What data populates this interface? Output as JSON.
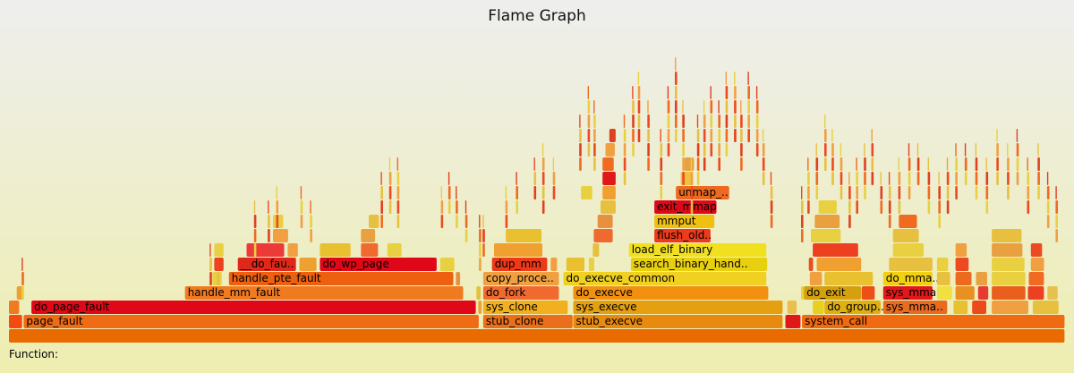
{
  "title": "Flame Graph",
  "details_label": "Function:",
  "chart_data": {
    "type": "flame",
    "title": "Flame Graph",
    "frames": [
      {
        "label": "",
        "level": 0,
        "start": 0,
        "width": 1,
        "color": "#e86a00"
      },
      {
        "label": "",
        "level": 1,
        "start": 0.0,
        "width": 0.013,
        "color": "#f24a10"
      },
      {
        "label": "page_fault",
        "level": 1,
        "start": 0.0139,
        "width": 0.4314,
        "color": "#ef6b14"
      },
      {
        "label": "stub_clone",
        "level": 1,
        "start": 0.4491,
        "width": 0.0852,
        "color": "#ea6f1c"
      },
      {
        "label": "stub_execve",
        "level": 1,
        "start": 0.5343,
        "width": 0.1987,
        "color": "#e88a10"
      },
      {
        "label": "",
        "level": 1,
        "start": 0.7352,
        "width": 0.0148,
        "color": "#e01818"
      },
      {
        "label": "system_call",
        "level": 1,
        "start": 0.7509,
        "width": 0.2491,
        "color": "#ef6a10"
      },
      {
        "label": "",
        "level": 2,
        "start": 0.0,
        "width": 0.0102,
        "color": "#f07a20"
      },
      {
        "label": "do_page_fault",
        "level": 2,
        "start": 0.0213,
        "width": 0.4213,
        "color": "#e00818"
      },
      {
        "label": "",
        "level": 2,
        "start": 0.4444,
        "width": 0.0037,
        "color": "#f0a030"
      },
      {
        "label": "sys_clone",
        "level": 2,
        "start": 0.4491,
        "width": 0.0806,
        "color": "#f2b020"
      },
      {
        "label": "sys_execve",
        "level": 2,
        "start": 0.5343,
        "width": 0.1987,
        "color": "#e4a010"
      },
      {
        "label": "",
        "level": 2,
        "start": 0.737,
        "width": 0.0093,
        "color": "#e9c050"
      },
      {
        "label": "",
        "level": 2,
        "start": 0.7611,
        "width": 0.0111,
        "color": "#e8d020"
      },
      {
        "label": "do_group..",
        "level": 2,
        "start": 0.7722,
        "width": 0.0537,
        "color": "#e0b010"
      },
      {
        "label": "sys_mma..",
        "level": 2,
        "start": 0.8278,
        "width": 0.0611,
        "color": "#ea6a20"
      },
      {
        "label": "",
        "level": 2,
        "start": 0.8944,
        "width": 0.0139,
        "color": "#e8c030"
      },
      {
        "label": "",
        "level": 2,
        "start": 0.912,
        "width": 0.0139,
        "color": "#ec4a18"
      },
      {
        "label": "",
        "level": 2,
        "start": 0.9306,
        "width": 0.0352,
        "color": "#f0a040"
      },
      {
        "label": "",
        "level": 2,
        "start": 0.9694,
        "width": 0.025,
        "color": "#e8c040"
      },
      {
        "label": "",
        "level": 3,
        "start": 0.0074,
        "width": 0.0065,
        "color": "#f0a030"
      },
      {
        "label": "handle_mm_fault",
        "level": 3,
        "start": 0.1667,
        "width": 0.2639,
        "color": "#f07a20"
      },
      {
        "label": "",
        "level": 3,
        "start": 0.4426,
        "width": 0.0046,
        "color": "#e8c040"
      },
      {
        "label": "do_fork",
        "level": 3,
        "start": 0.4491,
        "width": 0.0722,
        "color": "#f06a30"
      },
      {
        "label": "do_execve",
        "level": 3,
        "start": 0.5343,
        "width": 0.1852,
        "color": "#f29010"
      },
      {
        "label": "",
        "level": 3,
        "start": 0.75,
        "width": 0.0037,
        "color": "#e8d040"
      },
      {
        "label": "do_exit",
        "level": 3,
        "start": 0.7528,
        "width": 0.0546,
        "color": "#d4a010"
      },
      {
        "label": "",
        "level": 3,
        "start": 0.8074,
        "width": 0.013,
        "color": "#ec5018"
      },
      {
        "label": "sys_mma",
        "level": 3,
        "start": 0.8278,
        "width": 0.0472,
        "color": "#e0181a"
      },
      {
        "label": "",
        "level": 3,
        "start": 0.8787,
        "width": 0.0148,
        "color": "#f0e040"
      },
      {
        "label": "",
        "level": 3,
        "start": 0.8963,
        "width": 0.0185,
        "color": "#e89020"
      },
      {
        "label": "",
        "level": 3,
        "start": 0.9176,
        "width": 0.0102,
        "color": "#e83a30"
      },
      {
        "label": "",
        "level": 3,
        "start": 0.9306,
        "width": 0.0324,
        "color": "#e8601c"
      },
      {
        "label": "",
        "level": 3,
        "start": 0.9648,
        "width": 0.0157,
        "color": "#ec4020"
      },
      {
        "label": "",
        "level": 3,
        "start": 0.9833,
        "width": 0.0102,
        "color": "#e8c050"
      },
      {
        "label": "",
        "level": 4,
        "start": 0.1926,
        "width": 0.0093,
        "color": "#e8d040"
      },
      {
        "label": "handle_pte_fault",
        "level": 4,
        "start": 0.2083,
        "width": 0.213,
        "color": "#ec6010"
      },
      {
        "label": "",
        "level": 4,
        "start": 0.4231,
        "width": 0.0046,
        "color": "#e89040"
      },
      {
        "label": "copy_proce..",
        "level": 4,
        "start": 0.4491,
        "width": 0.0722,
        "color": "#f0a040"
      },
      {
        "label": "do_execve_common",
        "level": 4,
        "start": 0.525,
        "width": 0.1926,
        "color": "#f0d020"
      },
      {
        "label": "",
        "level": 4,
        "start": 0.7583,
        "width": 0.012,
        "color": "#f0a040"
      },
      {
        "label": "",
        "level": 4,
        "start": 0.7722,
        "width": 0.0463,
        "color": "#e8c030"
      },
      {
        "label": "do_mma..",
        "level": 4,
        "start": 0.8278,
        "width": 0.0472,
        "color": "#f0d010"
      },
      {
        "label": "",
        "level": 4,
        "start": 0.8787,
        "width": 0.013,
        "color": "#e8c040"
      },
      {
        "label": "",
        "level": 4,
        "start": 0.8963,
        "width": 0.0157,
        "color": "#ec6a20"
      },
      {
        "label": "",
        "level": 4,
        "start": 0.9157,
        "width": 0.0111,
        "color": "#e8a040"
      },
      {
        "label": "",
        "level": 4,
        "start": 0.9306,
        "width": 0.0324,
        "color": "#e8d040"
      },
      {
        "label": "",
        "level": 4,
        "start": 0.9657,
        "width": 0.0148,
        "color": "#f06a20"
      },
      {
        "label": "",
        "level": 5,
        "start": 0.1944,
        "width": 0.0093,
        "color": "#ec4020"
      },
      {
        "label": "__do_fau..",
        "level": 5,
        "start": 0.2167,
        "width": 0.0556,
        "color": "#e0281a"
      },
      {
        "label": "",
        "level": 5,
        "start": 0.275,
        "width": 0.0167,
        "color": "#f0a030"
      },
      {
        "label": "do_wp_page",
        "level": 5,
        "start": 0.2944,
        "width": 0.1111,
        "color": "#e00818"
      },
      {
        "label": "",
        "level": 5,
        "start": 0.4083,
        "width": 0.0139,
        "color": "#e8d040"
      },
      {
        "label": "dup_mm",
        "level": 5,
        "start": 0.4574,
        "width": 0.0528,
        "color": "#ec3a18"
      },
      {
        "label": "",
        "level": 5,
        "start": 0.513,
        "width": 0.0065,
        "color": "#f0a040"
      },
      {
        "label": "",
        "level": 5,
        "start": 0.5278,
        "width": 0.0176,
        "color": "#e8c030"
      },
      {
        "label": "",
        "level": 5,
        "start": 0.5491,
        "width": 0.0056,
        "color": "#e8d040"
      },
      {
        "label": "search_binary_hand..",
        "level": 5,
        "start": 0.5889,
        "width": 0.1296,
        "color": "#e8d010"
      },
      {
        "label": "",
        "level": 5,
        "start": 0.7574,
        "width": 0.0046,
        "color": "#e85020"
      },
      {
        "label": "",
        "level": 5,
        "start": 0.7648,
        "width": 0.0426,
        "color": "#f0a030"
      },
      {
        "label": "",
        "level": 5,
        "start": 0.8333,
        "width": 0.0417,
        "color": "#e8c040"
      },
      {
        "label": "",
        "level": 5,
        "start": 0.8787,
        "width": 0.0111,
        "color": "#e8d040"
      },
      {
        "label": "",
        "level": 5,
        "start": 0.8963,
        "width": 0.013,
        "color": "#ec4a20"
      },
      {
        "label": "",
        "level": 5,
        "start": 0.9306,
        "width": 0.0315,
        "color": "#e8d040"
      },
      {
        "label": "",
        "level": 5,
        "start": 0.9676,
        "width": 0.013,
        "color": "#f0a040"
      },
      {
        "label": "",
        "level": 6,
        "start": 0.1944,
        "width": 0.0093,
        "color": "#e8d040"
      },
      {
        "label": "",
        "level": 6,
        "start": 0.225,
        "width": 0.0361,
        "color": "#ec3a38"
      },
      {
        "label": "",
        "level": 6,
        "start": 0.2639,
        "width": 0.0102,
        "color": "#f0a040"
      },
      {
        "label": "",
        "level": 6,
        "start": 0.2944,
        "width": 0.0296,
        "color": "#e8c030"
      },
      {
        "label": "",
        "level": 6,
        "start": 0.3333,
        "width": 0.0167,
        "color": "#f06a30"
      },
      {
        "label": "",
        "level": 6,
        "start": 0.3583,
        "width": 0.0139,
        "color": "#e8d040"
      },
      {
        "label": "",
        "level": 6,
        "start": 0.4593,
        "width": 0.0463,
        "color": "#f0a030"
      },
      {
        "label": "",
        "level": 6,
        "start": 0.5528,
        "width": 0.0065,
        "color": "#e8c040"
      },
      {
        "label": "load_elf_binary",
        "level": 6,
        "start": 0.587,
        "width": 0.1306,
        "color": "#f0e020"
      },
      {
        "label": "",
        "level": 6,
        "start": 0.7611,
        "width": 0.0435,
        "color": "#ec4020"
      },
      {
        "label": "",
        "level": 6,
        "start": 0.837,
        "width": 0.0296,
        "color": "#e8d040"
      },
      {
        "label": "",
        "level": 6,
        "start": 0.8963,
        "width": 0.0111,
        "color": "#f0a040"
      },
      {
        "label": "",
        "level": 6,
        "start": 0.9306,
        "width": 0.0296,
        "color": "#e8a040"
      },
      {
        "label": "",
        "level": 6,
        "start": 0.9676,
        "width": 0.0111,
        "color": "#ec4a20"
      },
      {
        "label": "",
        "level": 7,
        "start": 0.25,
        "width": 0.0148,
        "color": "#f0a040"
      },
      {
        "label": "",
        "level": 7,
        "start": 0.3333,
        "width": 0.0139,
        "color": "#e8a040"
      },
      {
        "label": "",
        "level": 7,
        "start": 0.4704,
        "width": 0.0343,
        "color": "#e8c030"
      },
      {
        "label": "",
        "level": 7,
        "start": 0.5537,
        "width": 0.0185,
        "color": "#f06a30"
      },
      {
        "label": "flush_old..",
        "level": 7,
        "start": 0.6111,
        "width": 0.0537,
        "color": "#ec3a1a"
      },
      {
        "label": "",
        "level": 7,
        "start": 0.7593,
        "width": 0.0287,
        "color": "#e8d040"
      },
      {
        "label": "",
        "level": 7,
        "start": 0.837,
        "width": 0.025,
        "color": "#e8c040"
      },
      {
        "label": "",
        "level": 7,
        "start": 0.9306,
        "width": 0.0287,
        "color": "#e8c040"
      },
      {
        "label": "",
        "level": 8,
        "start": 0.25,
        "width": 0.0102,
        "color": "#e8d040"
      },
      {
        "label": "",
        "level": 8,
        "start": 0.3407,
        "width": 0.0102,
        "color": "#e8c040"
      },
      {
        "label": "",
        "level": 8,
        "start": 0.5574,
        "width": 0.0148,
        "color": "#e89040"
      },
      {
        "label": "mmput",
        "level": 8,
        "start": 0.6111,
        "width": 0.0574,
        "color": "#f0c010"
      },
      {
        "label": "",
        "level": 8,
        "start": 0.763,
        "width": 0.0241,
        "color": "#e8a040"
      },
      {
        "label": "",
        "level": 8,
        "start": 0.8426,
        "width": 0.0176,
        "color": "#f06a20"
      },
      {
        "label": "exit_mmap",
        "level": 9,
        "start": 0.6111,
        "width": 0.0593,
        "color": "#e00818"
      },
      {
        "label": "",
        "level": 9,
        "start": 0.5602,
        "width": 0.0148,
        "color": "#e8c040"
      },
      {
        "label": "",
        "level": 9,
        "start": 0.7667,
        "width": 0.0176,
        "color": "#e8d040"
      },
      {
        "label": "unmap_..",
        "level": 10,
        "start": 0.6315,
        "width": 0.0509,
        "color": "#ec6a20"
      },
      {
        "label": "",
        "level": 10,
        "start": 0.562,
        "width": 0.013,
        "color": "#f0a030"
      },
      {
        "label": "",
        "level": 10,
        "start": 0.5417,
        "width": 0.0111,
        "color": "#e8d040"
      },
      {
        "label": "",
        "level": 11,
        "start": 0.562,
        "width": 0.013,
        "color": "#e0181a"
      },
      {
        "label": "",
        "level": 11,
        "start": 0.6361,
        "width": 0.012,
        "color": "#f0c040"
      },
      {
        "label": "",
        "level": 12,
        "start": 0.562,
        "width": 0.0111,
        "color": "#f06a20"
      },
      {
        "label": "",
        "level": 12,
        "start": 0.6398,
        "width": 0.0093,
        "color": "#e8a040"
      },
      {
        "label": "",
        "level": 13,
        "start": 0.5648,
        "width": 0.0093,
        "color": "#f0a040"
      },
      {
        "label": "",
        "level": 14,
        "start": 0.5685,
        "width": 0.0065,
        "color": "#e04020"
      }
    ]
  }
}
